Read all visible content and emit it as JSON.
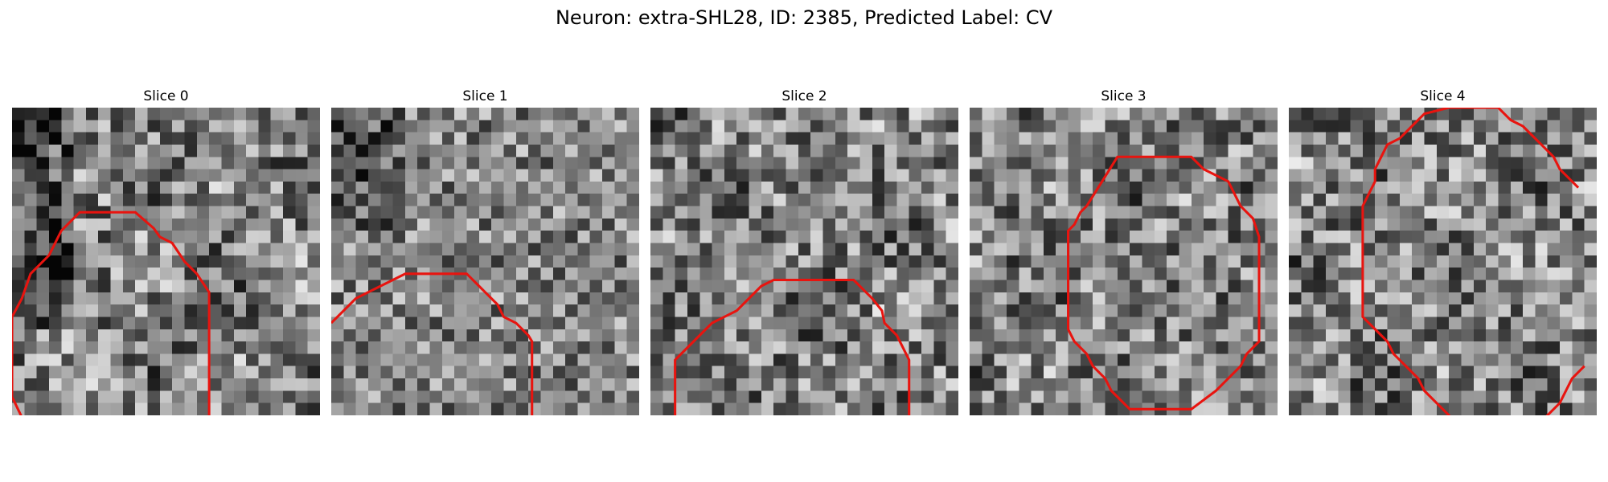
{
  "figure": {
    "title": "Neuron: extra-SHL28, ID: 2385, Predicted Label: CV"
  },
  "colors": {
    "contour": "#e8140f",
    "background": "#ffffff"
  },
  "panels": [
    {
      "title": "Slice 0",
      "seed": 11,
      "pattern": "smooth",
      "contour": [
        [
          1.2,
          26
        ],
        [
          0,
          23.5
        ],
        [
          0,
          17
        ],
        [
          0.8,
          15.5
        ],
        [
          1.5,
          13.5
        ],
        [
          3,
          12
        ],
        [
          4,
          10
        ],
        [
          5.5,
          8.5
        ],
        [
          10,
          8.5
        ],
        [
          11.5,
          9.8
        ],
        [
          12,
          10.5
        ],
        [
          13,
          11
        ],
        [
          14,
          12.5
        ],
        [
          15,
          13.5
        ],
        [
          16,
          15
        ],
        [
          16,
          26
        ],
        [
          14.5,
          27.5
        ],
        [
          13.8,
          28
        ]
      ]
    },
    {
      "title": "Slice 1",
      "seed": 29,
      "pattern": "checker",
      "contour": [
        [
          0,
          17.5
        ],
        [
          1,
          16.5
        ],
        [
          2,
          15.5
        ],
        [
          3,
          15
        ],
        [
          4,
          14.5
        ],
        [
          5,
          14
        ],
        [
          6,
          13.5
        ],
        [
          8,
          13.5
        ],
        [
          11,
          13.5
        ],
        [
          12,
          14.5
        ],
        [
          12.5,
          15
        ],
        [
          13.5,
          16
        ],
        [
          14,
          17
        ],
        [
          15,
          17.5
        ],
        [
          16,
          18.5
        ],
        [
          16.3,
          19
        ],
        [
          16.3,
          26.5
        ],
        [
          16.3,
          30
        ]
      ]
    },
    {
      "title": "Slice 2",
      "seed": 47,
      "pattern": "smooth",
      "contour": [
        [
          2,
          28.5
        ],
        [
          2,
          20.5
        ],
        [
          3,
          19.5
        ],
        [
          4.5,
          18
        ],
        [
          5,
          17.5
        ],
        [
          6,
          17
        ],
        [
          7,
          16.5
        ],
        [
          8,
          15.5
        ],
        [
          9,
          14.5
        ],
        [
          10,
          14
        ],
        [
          12,
          14
        ],
        [
          16.5,
          14
        ],
        [
          17.5,
          15
        ],
        [
          18,
          15.5
        ],
        [
          18.8,
          16.5
        ],
        [
          19,
          17.5
        ],
        [
          20,
          18.5
        ],
        [
          20.5,
          19.5
        ],
        [
          21,
          20.5
        ],
        [
          21,
          25.5
        ],
        [
          20,
          26.5
        ],
        [
          19,
          27.5
        ],
        [
          18.5,
          28.5
        ]
      ]
    },
    {
      "title": "Slice 3",
      "seed": 73,
      "pattern": "smooth",
      "contour": [
        [
          9.5,
          8
        ],
        [
          12,
          4
        ],
        [
          18,
          4
        ],
        [
          19,
          5
        ],
        [
          20,
          5.5
        ],
        [
          21,
          6
        ],
        [
          22,
          8
        ],
        [
          23,
          9
        ],
        [
          23.5,
          10.5
        ],
        [
          23.5,
          19
        ],
        [
          22.5,
          20
        ],
        [
          22,
          21
        ],
        [
          21,
          22
        ],
        [
          20,
          23
        ],
        [
          18,
          24.5
        ],
        [
          13,
          24.5
        ],
        [
          11.5,
          23
        ],
        [
          11,
          22
        ],
        [
          10,
          21
        ],
        [
          9.5,
          20
        ],
        [
          8.5,
          19
        ],
        [
          8,
          18
        ],
        [
          8,
          10
        ],
        [
          8.5,
          9.5
        ],
        [
          9,
          8.5
        ],
        [
          9.5,
          8
        ]
      ]
    },
    {
      "title": "Slice 4",
      "seed": 97,
      "pattern": "smooth",
      "contour": [
        [
          23.5,
          6.5
        ],
        [
          22,
          5
        ],
        [
          21.5,
          4
        ],
        [
          20.5,
          3
        ],
        [
          19,
          1.5
        ],
        [
          18,
          1
        ],
        [
          17,
          0
        ],
        [
          13,
          0
        ],
        [
          11,
          0.5
        ],
        [
          10,
          1.5
        ],
        [
          9,
          2.5
        ],
        [
          8,
          3
        ],
        [
          7.5,
          4
        ],
        [
          7,
          5
        ],
        [
          7,
          6
        ],
        [
          6.5,
          7
        ],
        [
          6,
          8
        ],
        [
          6,
          17
        ],
        [
          7,
          18
        ],
        [
          8,
          19
        ],
        [
          8.5,
          20
        ],
        [
          9.5,
          21
        ],
        [
          10.5,
          22
        ],
        [
          11,
          23
        ],
        [
          12,
          24
        ],
        [
          13,
          25
        ],
        [
          14,
          26
        ],
        [
          15,
          27
        ],
        [
          17.5,
          27
        ],
        [
          19,
          27
        ],
        [
          20,
          26
        ],
        [
          21,
          25
        ],
        [
          22,
          24
        ],
        [
          22.5,
          23
        ],
        [
          23,
          22
        ],
        [
          24,
          21
        ]
      ]
    }
  ]
}
